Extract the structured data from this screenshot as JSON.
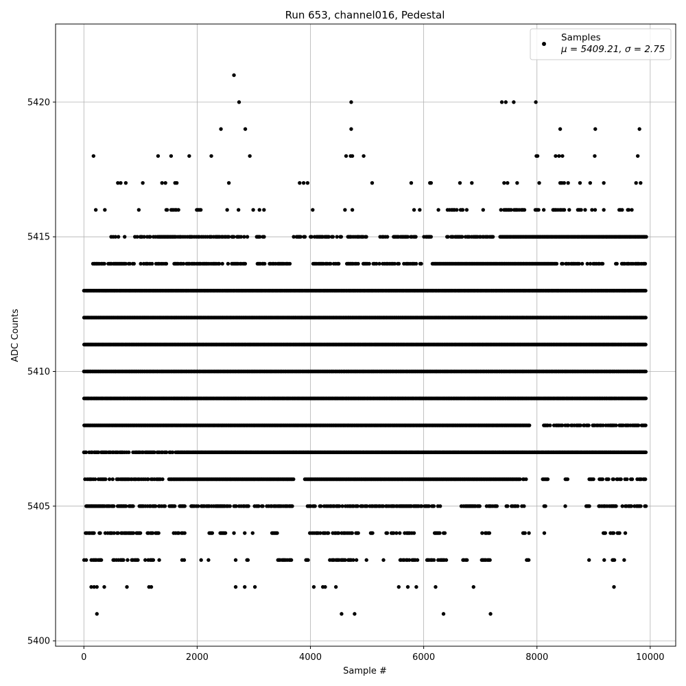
{
  "chart_data": {
    "type": "scatter",
    "title": "Run 653, channel016, Pedestal",
    "xlabel": "Sample #",
    "ylabel": "ADC Counts",
    "xlim": [
      -500,
      10450
    ],
    "ylim": [
      5399.8,
      5422.9
    ],
    "xticks": [
      0,
      2000,
      4000,
      6000,
      8000,
      10000
    ],
    "yticks": [
      5400,
      5405,
      5410,
      5415,
      5420
    ],
    "xtick_labels": [
      "0",
      "2000",
      "4000",
      "6000",
      "8000",
      "10000"
    ],
    "ytick_labels": [
      "5400",
      "5405",
      "5410",
      "5415",
      "5420"
    ],
    "grid": true,
    "legend_position": "top-right",
    "marker_color": "#000000",
    "series": [
      {
        "name": "Samples",
        "stats_label": "μ = 5409.21, σ = 2.75",
        "mu": 5409.21,
        "sigma": 2.75,
        "n_samples": 10000,
        "level_ranges": [
          {
            "y": 5401,
            "x": [
              230,
              4550,
              4780,
              6350,
              7180
            ]
          },
          {
            "y": 5402,
            "x": [
              130,
              180,
              230,
              360,
              760,
              1150,
              1190,
              2680,
              2840,
              3020,
              4060,
              4220,
              4260,
              4450,
              5560,
              5720,
              5870,
              6210,
              6880,
              9360
            ]
          },
          {
            "y": 5403,
            "x": [
              [
                0,
                380
              ],
              [
                500,
                960
              ],
              [
                1080,
                1250
              ],
              [
                1330
              ],
              [
                1730,
                1800
              ],
              [
                2070
              ],
              [
                2200
              ],
              [
                2680
              ],
              [
                2860,
                2930
              ],
              [
                3220,
                3290
              ],
              [
                3390,
                3700
              ],
              [
                3920,
                3960
              ],
              [
                4340,
                4810
              ],
              [
                4990
              ],
              [
                5290
              ],
              [
                5580,
                5900
              ],
              [
                6000,
                6400
              ],
              [
                6690,
                6810
              ],
              [
                7020,
                7180
              ],
              [
                7800,
                7870
              ],
              [
                8920
              ],
              [
                9150,
                9210
              ],
              [
                9330,
                9380
              ],
              [
                9540
              ]
            ]
          },
          {
            "y": 5404,
            "x": [
              [
                30,
                180
              ],
              [
                250,
                380
              ],
              [
                420,
                1000
              ],
              [
                1120,
                1330
              ],
              [
                1580,
                1780
              ],
              [
                2210,
                2300
              ],
              [
                2370,
                2520
              ],
              [
                2650
              ],
              [
                2840
              ],
              [
                2980
              ],
              [
                3300,
                3420
              ],
              [
                3990,
                4360
              ],
              [
                4390,
                4850
              ],
              [
                5060,
                5130
              ],
              [
                5320,
                5830
              ],
              [
                6170,
                6370
              ],
              [
                7030,
                7190
              ],
              [
                7750,
                7870
              ],
              [
                8130
              ],
              [
                9170,
                9470
              ],
              [
                9560
              ]
            ]
          },
          {
            "y": 5405,
            "x": [
              [
                20,
                880
              ],
              [
                940,
                1440
              ],
              [
                1510,
                1800
              ],
              [
                1890,
                2580
              ],
              [
                2650,
                3700
              ],
              [
                3950,
                5050
              ],
              [
                5080,
                6300
              ],
              [
                6660,
                7300
              ],
              [
                7460,
                7790
              ],
              [
                8090,
                8170
              ],
              [
                8500
              ],
              [
                8870,
                9010
              ],
              [
                9090,
                9930
              ]
            ]
          },
          {
            "y": 5406,
            "x": [
              [
                0,
                1400
              ],
              [
                1500,
                3700
              ],
              [
                3900,
                7700
              ],
              [
                7750,
                7850
              ],
              [
                8100,
                8190
              ],
              [
                8500,
                8550
              ],
              [
                8920,
                9010
              ],
              [
                9100,
                9930
              ]
            ]
          },
          {
            "y": 5407,
            "x": [
              [
                0,
                1580
              ],
              [
                1620,
                9930
              ]
            ]
          },
          {
            "y": 5408,
            "x": [
              [
                0,
                7870
              ],
              [
                8100,
                9930
              ]
            ]
          },
          {
            "y": 5409,
            "x": [
              [
                0,
                9930
              ]
            ]
          },
          {
            "y": 5410,
            "x": [
              [
                0,
                9930
              ]
            ]
          },
          {
            "y": 5411,
            "x": [
              [
                0,
                9930
              ]
            ]
          },
          {
            "y": 5412,
            "x": [
              [
                0,
                9930
              ]
            ]
          },
          {
            "y": 5413,
            "x": [
              [
                0,
                9930
              ]
            ]
          },
          {
            "y": 5414,
            "x": [
              [
                160,
                880
              ],
              [
                1000,
                2500
              ],
              [
                2540,
                2860
              ],
              [
                3060,
                3700
              ],
              [
                4030,
                5960
              ],
              [
                6150,
                8350
              ],
              [
                8400,
                9200
              ],
              [
                9370,
                9930
              ]
            ]
          },
          {
            "y": 5415,
            "x": [
              [
                480,
                620
              ],
              [
                720
              ],
              [
                900,
                2560
              ],
              [
                2610,
                2890
              ],
              [
                3050,
                3190
              ],
              [
                3700,
                3900
              ],
              [
                4000,
                4560
              ],
              [
                4660,
                5010
              ],
              [
                5230,
                5860
              ],
              [
                6000,
                6140
              ],
              [
                6390,
                7220
              ],
              [
                7350,
                9930
              ]
            ]
          },
          {
            "y": 5416,
            "x": [
              [
                210
              ],
              [
                370
              ],
              [
                970
              ],
              [
                1450,
                1650
              ],
              [
                1670
              ],
              [
                1970,
                2060
              ],
              [
                2530
              ],
              [
                2730
              ],
              [
                2990
              ],
              [
                3100
              ],
              [
                3180
              ],
              [
                4040
              ],
              [
                4610
              ],
              [
                4740
              ],
              [
                5830
              ],
              [
                5930
              ],
              [
                6260
              ],
              [
                6400,
                6700
              ],
              [
                6760
              ],
              [
                7050
              ],
              [
                7360,
                7780
              ],
              [
                7970,
                8030
              ],
              [
                8120
              ],
              [
                8280,
                8510
              ],
              [
                8570
              ],
              [
                8720,
                8860
              ],
              [
                8970,
                9070
              ],
              [
                9180
              ],
              [
                9450,
                9520
              ],
              [
                9580,
                9670
              ]
            ]
          },
          {
            "y": 5417,
            "x": [
              600,
              650,
              740,
              1040,
              1380,
              1440,
              1610,
              1640,
              2560,
              3810,
              3880,
              3950,
              5090,
              5780,
              6110,
              6130,
              6640,
              6850,
              7420,
              7480,
              7650,
              8040,
              8410,
              8440,
              8480,
              8550,
              8760,
              8940,
              9180,
              9750,
              9830
            ]
          },
          {
            "y": 5418,
            "x": [
              170,
              1310,
              1540,
              1860,
              2250,
              2930,
              4630,
              4710,
              4740,
              4940,
              7990,
              8010,
              8330,
              8390,
              8450,
              9020,
              9780
            ]
          },
          {
            "y": 5419,
            "x": [
              2420,
              2850,
              4720,
              8410,
              9030,
              9810
            ]
          },
          {
            "y": 5420,
            "x": [
              2740,
              4720,
              7380,
              7450,
              7590,
              7980
            ]
          },
          {
            "y": 5421,
            "x": [
              2650
            ]
          }
        ]
      }
    ]
  }
}
